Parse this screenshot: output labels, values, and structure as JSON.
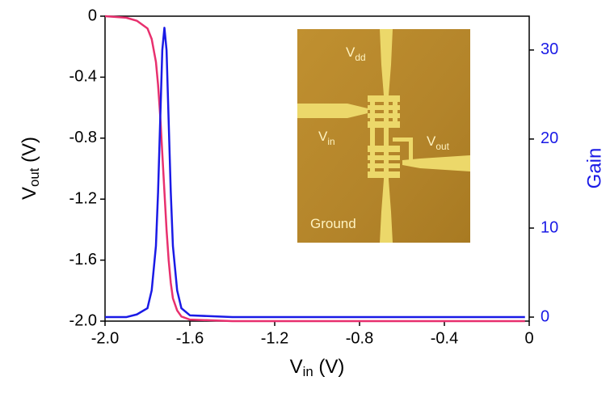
{
  "chart_data": {
    "type": "line",
    "xlabel": {
      "symbol": "V",
      "subscript": "in",
      "unit": " (V)"
    },
    "ylabel": {
      "symbol": "V",
      "subscript": "out",
      "unit": " (V)"
    },
    "y2label": "Gain",
    "x": [
      -2.0,
      -1.9,
      -1.85,
      -1.8,
      -1.78,
      -1.76,
      -1.75,
      -1.74,
      -1.73,
      -1.72,
      -1.71,
      -1.7,
      -1.69,
      -1.68,
      -1.66,
      -1.64,
      -1.6,
      -1.4,
      -1.2,
      -0.8,
      -0.4,
      -0.02
    ],
    "series": [
      {
        "color": "#e8306e",
        "axis": "y",
        "values": [
          0,
          -0.01,
          -0.03,
          -0.08,
          -0.15,
          -0.3,
          -0.45,
          -0.65,
          -0.9,
          -1.15,
          -1.4,
          -1.6,
          -1.75,
          -1.85,
          -1.93,
          -1.97,
          -1.99,
          -2.0,
          -2.0,
          -2.0,
          -2.0,
          -2.0
        ]
      },
      {
        "color": "#1a1ae6",
        "axis": "y2",
        "values": [
          0,
          0,
          0.3,
          1,
          3,
          8,
          14,
          22,
          30,
          32.5,
          30,
          22,
          14,
          8,
          3,
          1,
          0.2,
          0,
          0,
          0,
          0,
          0
        ]
      }
    ],
    "xlim": [
      -2.0,
      0
    ],
    "xticks": [
      {
        "value": -2,
        "label": "-2.0"
      },
      -1.6,
      -1.2,
      -0.8,
      -0.4,
      0
    ],
    "ylim": [
      -2.0,
      0
    ],
    "yticks": [
      0,
      -0.4,
      -0.8,
      -1.2,
      -1.6,
      {
        "value": -2,
        "label": "-2.0"
      }
    ],
    "y2lim": [
      -0.45,
      33.8
    ],
    "y2ticks": [
      0,
      10,
      20,
      30
    ],
    "y2color": "#1a1ae6",
    "inset": {
      "labels": [
        {
          "symbol": "V",
          "subscript": "dd"
        },
        {
          "symbol": "V",
          "subscript": "in"
        },
        {
          "symbol": "V",
          "subscript": "out"
        },
        {
          "symbol": "Ground"
        }
      ]
    }
  }
}
